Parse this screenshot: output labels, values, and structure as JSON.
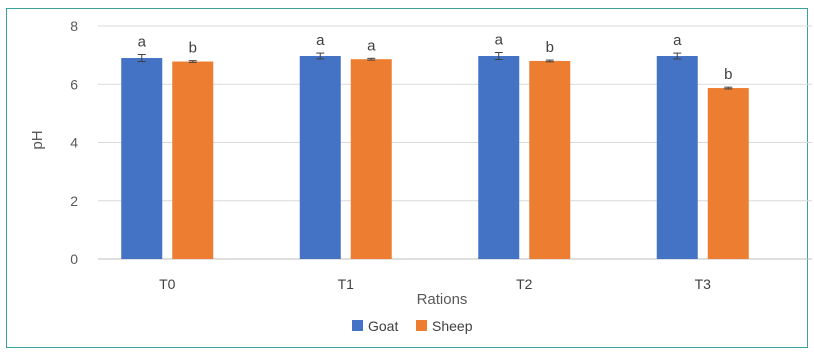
{
  "chart_data": {
    "type": "bar",
    "categories": [
      "T0",
      "T1",
      "T2",
      "T3"
    ],
    "series": [
      {
        "name": "Goat",
        "color": "#4472C4",
        "values": [
          6.9,
          6.97,
          6.97,
          6.97
        ],
        "errors": [
          0.12,
          0.1,
          0.12,
          0.1
        ],
        "labels": [
          "a",
          "a",
          "a",
          "a"
        ]
      },
      {
        "name": "Sheep",
        "color": "#ED7D31",
        "values": [
          6.78,
          6.86,
          6.8,
          5.87
        ],
        "errors": [
          0.03,
          0.03,
          0.03,
          0.03
        ],
        "labels": [
          "b",
          "a",
          "b",
          "b"
        ]
      }
    ],
    "title": "",
    "xlabel": "Rations",
    "ylabel": "pH",
    "ylim": [
      0,
      8
    ],
    "yticks": [
      0,
      2,
      4,
      6,
      8
    ],
    "grid": true,
    "legend": "bottom"
  }
}
